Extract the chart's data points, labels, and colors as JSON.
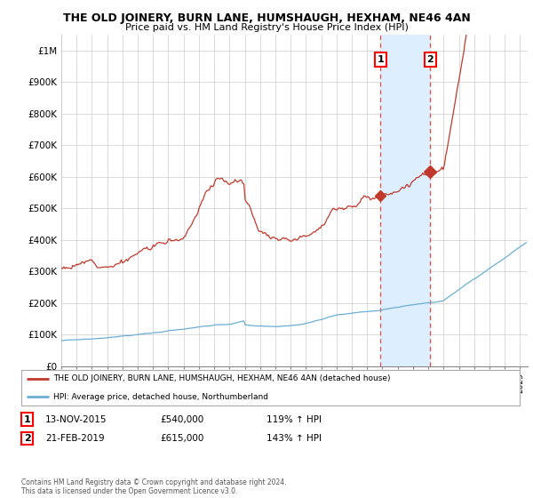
{
  "title": "THE OLD JOINERY, BURN LANE, HUMSHAUGH, HEXHAM, NE46 4AN",
  "subtitle": "Price paid vs. HM Land Registry's House Price Index (HPI)",
  "ylabel_ticks": [
    "£0",
    "£100K",
    "£200K",
    "£300K",
    "£400K",
    "£500K",
    "£600K",
    "£700K",
    "£800K",
    "£900K",
    "£1M"
  ],
  "ytick_values": [
    0,
    100000,
    200000,
    300000,
    400000,
    500000,
    600000,
    700000,
    800000,
    900000,
    1000000
  ],
  "ylim": [
    0,
    1050000
  ],
  "xlim_start": 1995.0,
  "xlim_end": 2025.5,
  "hpi_color": "#6baed6",
  "price_color": "#c0392b",
  "sale1_x": 2015.87,
  "sale1_y": 540000,
  "sale2_x": 2019.13,
  "sale2_y": 615000,
  "sale1_label": "1",
  "sale2_label": "2",
  "vline_color": "#e74c3c",
  "vshade_color": "#ddeeff",
  "legend_line1": "THE OLD JOINERY, BURN LANE, HUMSHAUGH, HEXHAM, NE46 4AN (detached house)",
  "legend_line2": "HPI: Average price, detached house, Northumberland",
  "table_row1": [
    "1",
    "13-NOV-2015",
    "£540,000",
    "119% ↑ HPI"
  ],
  "table_row2": [
    "2",
    "21-FEB-2019",
    "£615,000",
    "143% ↑ HPI"
  ],
  "footnote": "Contains HM Land Registry data © Crown copyright and database right 2024.\nThis data is licensed under the Open Government Licence v3.0.",
  "background_color": "#ffffff",
  "grid_color": "#cccccc"
}
